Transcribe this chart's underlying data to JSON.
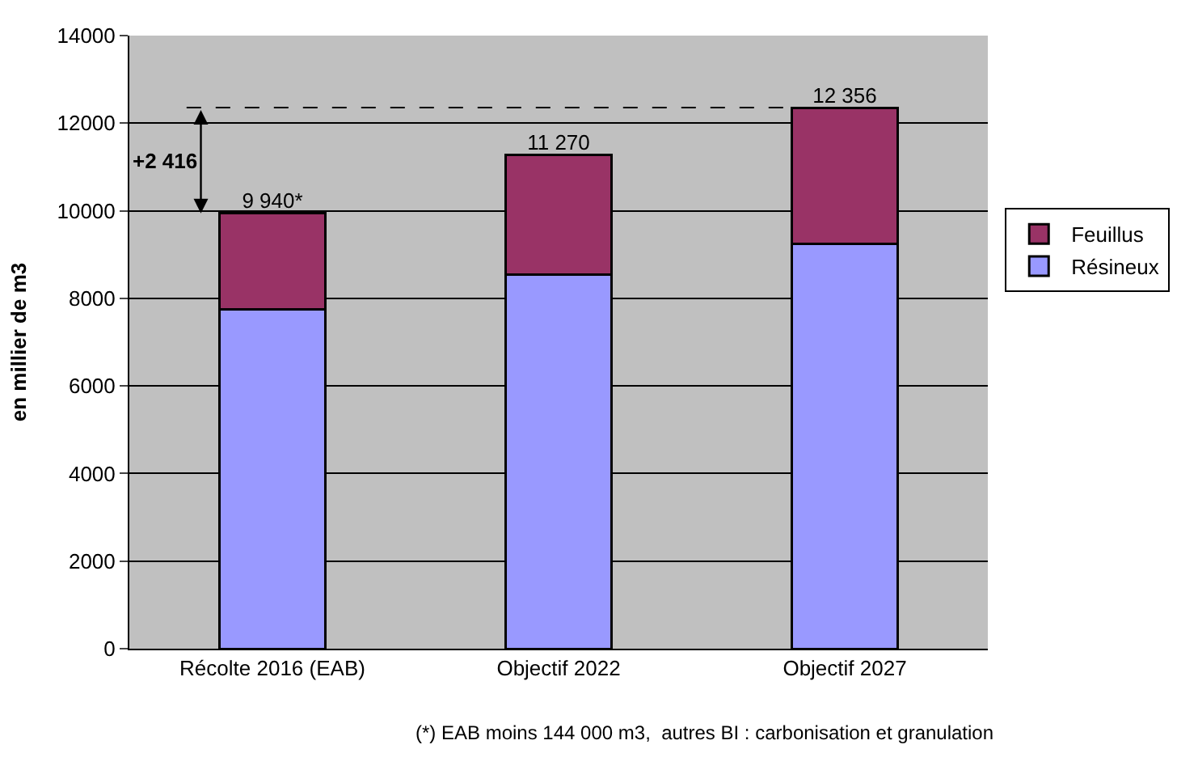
{
  "chart_data": {
    "type": "bar",
    "stacked": true,
    "ylabel": "en millier de m3",
    "categories": [
      "Récolte 2016 (EAB)",
      "Objectif 2022",
      "Objectif 2027"
    ],
    "series": [
      {
        "name": "Résineux",
        "color": "#9999ff",
        "values": [
          7750,
          8550,
          9250
        ]
      },
      {
        "name": "Feuillus",
        "color": "#993366",
        "values": [
          2190,
          2720,
          3106
        ]
      }
    ],
    "totals": [
      "9 940*",
      "11 270",
      "12 356"
    ],
    "ylim": [
      0,
      14000
    ],
    "yticks": [
      0,
      2000,
      4000,
      6000,
      8000,
      10000,
      12000,
      14000
    ],
    "grid": "y",
    "legend": "right",
    "ref_lines": [
      {
        "axis": "y",
        "value": 12356,
        "line_style": "dashed",
        "color": "#000000"
      }
    ],
    "annotations": [
      "+2 416",
      "(*) EAB moins 144 000 m3,  autres BI : carbonisation et granulation"
    ]
  }
}
